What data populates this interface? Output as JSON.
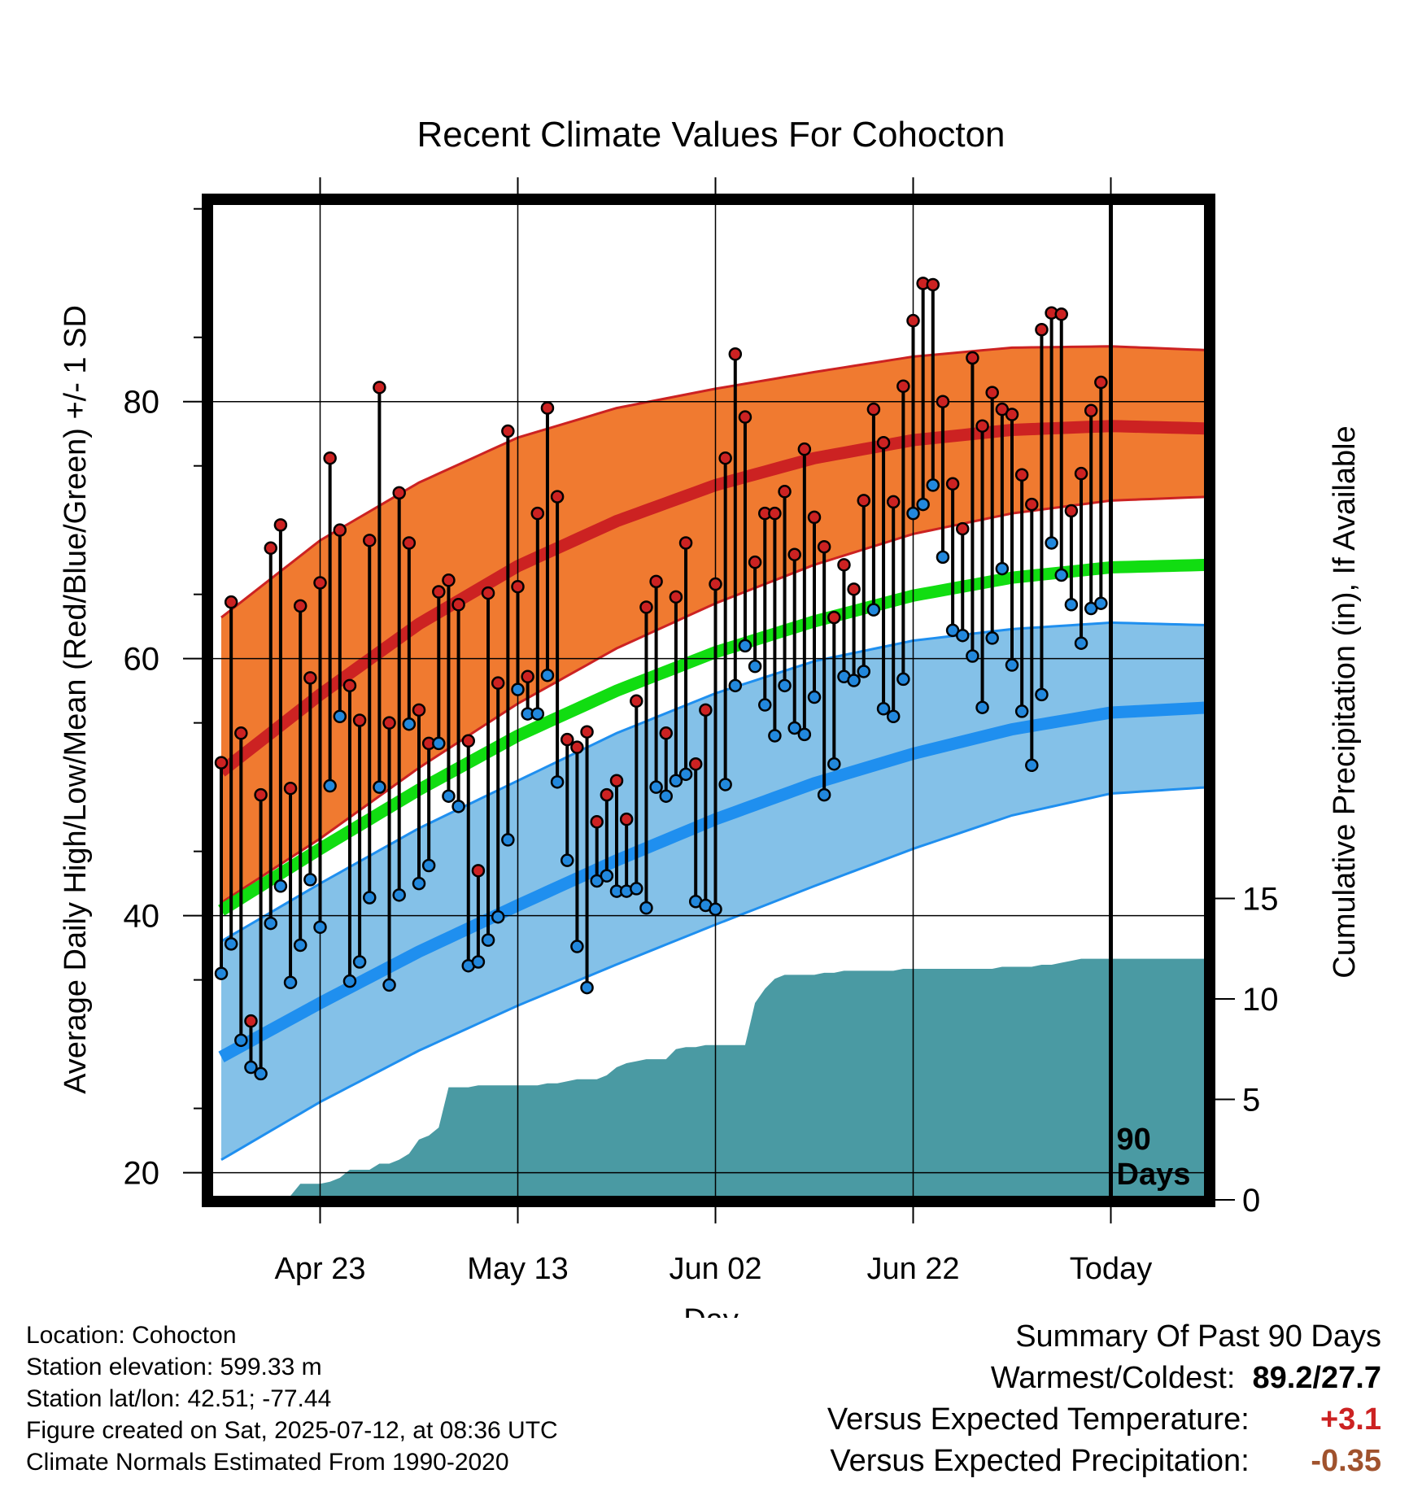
{
  "chart_data": {
    "type": "line",
    "title": "Recent Climate Values For Cohocton",
    "xlabel": "Day",
    "ylabel": "Average Daily High/Low/Mean (Red/Blue/Green) +/- 1 SD",
    "y2label": "Cumulative Precipitation (in), If Available",
    "ylim": [
      18.2,
      95.3
    ],
    "y2lim": [
      0,
      15
    ],
    "x_ticks": [
      {
        "label": "Apr 23",
        "day": 10
      },
      {
        "label": "May 13",
        "day": 30
      },
      {
        "label": "Jun 02",
        "day": 50
      },
      {
        "label": "Jun 22",
        "day": 70
      },
      {
        "label": "Today",
        "day": 90
      }
    ],
    "y_ticks": [
      20,
      40,
      60,
      80
    ],
    "y2_ticks": [
      0,
      5,
      10,
      15
    ],
    "today_label": [
      "90",
      "Days"
    ],
    "normals": {
      "days": [
        0,
        10,
        20,
        30,
        40,
        50,
        60,
        70,
        80,
        90,
        100
      ],
      "high_mean": [
        51.2,
        57.2,
        62.7,
        67.2,
        70.7,
        73.5,
        75.6,
        77.0,
        77.8,
        78.1,
        77.9
      ],
      "high_sd_upper": [
        63.2,
        69.2,
        73.7,
        77.2,
        79.5,
        81.0,
        82.3,
        83.5,
        84.2,
        84.3,
        84.0
      ],
      "high_sd_lower": [
        41.0,
        46.0,
        51.5,
        56.5,
        60.8,
        64.3,
        67.3,
        69.7,
        71.3,
        72.3,
        72.6
      ],
      "mean": [
        40.4,
        45.2,
        49.8,
        54.0,
        57.5,
        60.5,
        62.9,
        64.9,
        66.3,
        67.1,
        67.3
      ],
      "low_mean": [
        29.0,
        33.2,
        37.2,
        40.8,
        44.3,
        47.5,
        50.3,
        52.6,
        54.5,
        55.8,
        56.2
      ],
      "low_sd_upper": [
        38.0,
        42.5,
        46.8,
        50.5,
        54.2,
        57.3,
        59.8,
        61.4,
        62.3,
        62.8,
        62.6
      ],
      "low_sd_lower": [
        21.0,
        25.5,
        29.5,
        33.0,
        36.2,
        39.3,
        42.3,
        45.2,
        47.8,
        49.5,
        50.0
      ]
    },
    "series": [
      {
        "name": "High",
        "color": "#cc2222",
        "values": [
          51.9,
          64.4,
          54.2,
          31.8,
          49.4,
          68.6,
          70.4,
          49.9,
          64.1,
          58.5,
          65.9,
          75.6,
          70.0,
          57.9,
          55.2,
          69.2,
          81.1,
          55.0,
          72.9,
          69.0,
          56.0,
          53.4,
          65.2,
          66.1,
          64.2,
          53.6,
          43.5,
          65.1,
          58.1,
          77.7,
          65.6,
          58.6,
          71.3,
          79.5,
          72.6,
          53.7,
          53.1,
          54.3,
          47.3,
          49.4,
          50.5,
          47.5,
          56.7,
          64.0,
          66.0,
          54.2,
          64.8,
          69.0,
          51.8,
          56.0,
          65.8,
          75.6,
          83.7,
          78.8,
          67.5,
          71.3,
          71.3,
          73.0,
          68.1,
          76.3,
          71.0,
          68.7,
          63.2,
          67.3,
          65.4,
          72.3,
          79.4,
          76.8,
          72.2,
          81.2,
          86.3,
          89.2,
          89.1,
          80.0,
          73.6,
          70.1,
          83.4,
          78.1,
          80.7,
          79.4,
          79.0,
          74.3,
          72.0,
          85.6,
          86.9,
          86.8,
          71.5,
          74.4,
          79.3,
          81.5
        ]
      },
      {
        "name": "Low",
        "color": "#2288dd",
        "values": [
          35.5,
          37.8,
          30.3,
          28.2,
          27.7,
          39.4,
          42.3,
          34.8,
          37.7,
          42.8,
          39.1,
          50.1,
          55.5,
          34.9,
          36.4,
          41.4,
          50.0,
          34.6,
          41.6,
          54.9,
          42.5,
          43.9,
          53.4,
          49.3,
          48.5,
          36.1,
          36.4,
          38.1,
          39.9,
          45.9,
          57.6,
          55.7,
          55.7,
          58.7,
          50.4,
          44.3,
          37.6,
          34.4,
          42.7,
          43.1,
          41.9,
          41.9,
          42.1,
          40.6,
          50.0,
          49.3,
          50.5,
          51.0,
          41.1,
          40.8,
          40.5,
          50.2,
          57.9,
          61.0,
          59.4,
          56.4,
          54.0,
          57.9,
          54.6,
          54.1,
          57.0,
          49.4,
          51.8,
          58.6,
          58.3,
          59.0,
          63.8,
          56.1,
          55.5,
          58.4,
          71.3,
          72.0,
          73.5,
          67.9,
          62.2,
          61.8,
          60.2,
          56.2,
          61.6,
          67.0,
          59.5,
          55.9,
          51.7,
          57.2,
          69.0,
          66.5,
          64.2,
          61.2,
          63.9,
          64.3
        ]
      },
      {
        "name": "Precipitation",
        "color": "#4a9aa3",
        "days": [
          0,
          5,
          6,
          7,
          8,
          9,
          10,
          11,
          12,
          13,
          14,
          15,
          16,
          17,
          18,
          19,
          20,
          21,
          22,
          23,
          24,
          25,
          26,
          27,
          28,
          29,
          30,
          31,
          32,
          33,
          34,
          35,
          36,
          37,
          38,
          39,
          40,
          41,
          42,
          43,
          44,
          45,
          46,
          47,
          48,
          49,
          50,
          51,
          52,
          53,
          54,
          55,
          56,
          57,
          58,
          59,
          60,
          61,
          62,
          63,
          64,
          65,
          66,
          67,
          68,
          69,
          70,
          71,
          72,
          73,
          74,
          75,
          76,
          77,
          78,
          79,
          80,
          81,
          82,
          83,
          84,
          85,
          86,
          87,
          88,
          89,
          90,
          91,
          92,
          93,
          94,
          95,
          96,
          97,
          98,
          99,
          100
        ],
        "values": [
          0,
          0,
          0,
          0.2,
          0.8,
          0.8,
          0.8,
          0.9,
          1.1,
          1.5,
          1.5,
          1.5,
          1.8,
          1.8,
          2.0,
          2.3,
          3.0,
          3.2,
          3.6,
          5.6,
          5.6,
          5.6,
          5.7,
          5.7,
          5.7,
          5.7,
          5.7,
          5.7,
          5.7,
          5.8,
          5.8,
          5.9,
          6.0,
          6.0,
          6.0,
          6.2,
          6.6,
          6.8,
          6.9,
          7.0,
          7.0,
          7.0,
          7.5,
          7.6,
          7.6,
          7.7,
          7.7,
          7.7,
          7.7,
          7.7,
          9.8,
          10.5,
          11.0,
          11.2,
          11.2,
          11.2,
          11.2,
          11.3,
          11.3,
          11.4,
          11.4,
          11.4,
          11.4,
          11.4,
          11.4,
          11.5,
          11.5,
          11.5,
          11.5,
          11.5,
          11.5,
          11.5,
          11.5,
          11.5,
          11.5,
          11.6,
          11.6,
          11.6,
          11.6,
          11.7,
          11.7,
          11.8,
          11.9,
          12.0,
          12.0,
          12.0,
          12.0,
          12.0,
          12.0,
          12.0,
          12.0,
          12.0,
          12.0,
          12.0,
          12.0,
          12.0,
          12.0
        ]
      }
    ],
    "colors": {
      "high_band": "#f07a30",
      "high_line": "#cc2222",
      "mean_line": "#11dd11",
      "low_band": "#84c1e8",
      "low_line": "#1f8fef",
      "precip": "#4a9aa3"
    },
    "grid": true
  },
  "info": {
    "location": "Location: Cohocton",
    "elevation": "Station elevation: 599.33 m",
    "latlon": "Station lat/lon: 42.51; -77.44",
    "created": "Figure created on Sat, 2025-07-12, at 08:36 UTC",
    "normals": "Climate Normals Estimated From 1990-2020"
  },
  "summary": {
    "title": "Summary Of Past 90 Days",
    "warm_label": "Warmest/Coldest:",
    "warm_value": "89.2/27.7",
    "temp_label": "Versus Expected Temperature:",
    "temp_value": "+3.1",
    "temp_color": "#cc2222",
    "precip_label": "Versus Expected Precipitation:",
    "precip_value": "-0.35",
    "precip_color": "#a0522d"
  }
}
